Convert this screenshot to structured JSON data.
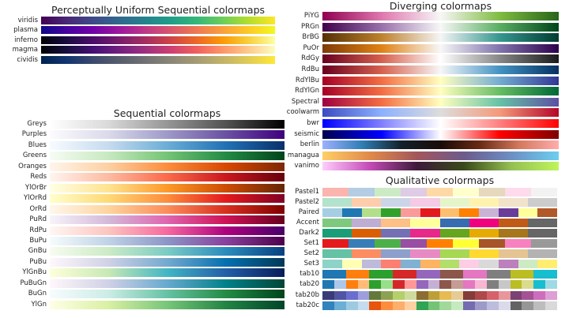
{
  "chart_data": [
    {
      "type": "colormap",
      "title": "Perceptually Uniform Sequential colormaps",
      "colormaps": [
        {
          "name": "viridis",
          "kind": "continuous",
          "colors": [
            "#440154",
            "#482878",
            "#3e4989",
            "#31688e",
            "#26828e",
            "#1f9e89",
            "#35b779",
            "#6ece58",
            "#b5de2b",
            "#fde725"
          ]
        },
        {
          "name": "plasma",
          "kind": "continuous",
          "colors": [
            "#0d0887",
            "#46039f",
            "#7201a8",
            "#9c179e",
            "#bd3786",
            "#d8576b",
            "#ed7953",
            "#fb9f3a",
            "#fdca26",
            "#f0f921"
          ]
        },
        {
          "name": "inferno",
          "kind": "continuous",
          "colors": [
            "#000004",
            "#1b0c41",
            "#4a0c6b",
            "#781c6d",
            "#a52c60",
            "#cf4446",
            "#ed6925",
            "#fb9b06",
            "#f7d13d",
            "#fcffa4"
          ]
        },
        {
          "name": "magma",
          "kind": "continuous",
          "colors": [
            "#000004",
            "#180f3d",
            "#440f76",
            "#721f81",
            "#9e2f7f",
            "#cd4071",
            "#f1605d",
            "#fd9668",
            "#feca8d",
            "#fcfdbf"
          ]
        },
        {
          "name": "cividis",
          "kind": "continuous",
          "colors": [
            "#00224e",
            "#123570",
            "#3b496c",
            "#575d6d",
            "#707173",
            "#8a8678",
            "#a59c74",
            "#c3b369",
            "#e1cc55",
            "#fee838"
          ]
        }
      ]
    },
    {
      "type": "colormap",
      "title": "Sequential colormaps",
      "colormaps": [
        {
          "name": "Greys",
          "kind": "continuous",
          "colors": [
            "#ffffff",
            "#d9d9d9",
            "#969696",
            "#525252",
            "#000000"
          ]
        },
        {
          "name": "Purples",
          "kind": "continuous",
          "colors": [
            "#fcfbfd",
            "#dadaeb",
            "#9e9ac8",
            "#6a51a3",
            "#3f007d"
          ]
        },
        {
          "name": "Blues",
          "kind": "continuous",
          "colors": [
            "#f7fbff",
            "#c6dbef",
            "#6baed6",
            "#2171b5",
            "#08306b"
          ]
        },
        {
          "name": "Greens",
          "kind": "continuous",
          "colors": [
            "#f7fcf5",
            "#c7e9c0",
            "#74c476",
            "#238b45",
            "#00441b"
          ]
        },
        {
          "name": "Oranges",
          "kind": "continuous",
          "colors": [
            "#fff5eb",
            "#fdd0a2",
            "#fd8d3c",
            "#d94801",
            "#7f2704"
          ]
        },
        {
          "name": "Reds",
          "kind": "continuous",
          "colors": [
            "#fff5f0",
            "#fcbba1",
            "#fb6a4a",
            "#cb181d",
            "#67000d"
          ]
        },
        {
          "name": "YlOrBr",
          "kind": "continuous",
          "colors": [
            "#ffffe5",
            "#fee391",
            "#fe9929",
            "#cc4c02",
            "#662506"
          ]
        },
        {
          "name": "YlOrRd",
          "kind": "continuous",
          "colors": [
            "#ffffcc",
            "#fed976",
            "#fd8d3c",
            "#e31a1c",
            "#800026"
          ]
        },
        {
          "name": "OrRd",
          "kind": "continuous",
          "colors": [
            "#fff7ec",
            "#fdd49e",
            "#fc8d59",
            "#d7301f",
            "#7f0000"
          ]
        },
        {
          "name": "PuRd",
          "kind": "continuous",
          "colors": [
            "#f7f4f9",
            "#d4b9da",
            "#df65b0",
            "#ce1256",
            "#67001f"
          ]
        },
        {
          "name": "RdPu",
          "kind": "continuous",
          "colors": [
            "#fff7f3",
            "#fcc5c0",
            "#f768a1",
            "#ae017e",
            "#49006a"
          ]
        },
        {
          "name": "BuPu",
          "kind": "continuous",
          "colors": [
            "#f7fcfd",
            "#bfd3e6",
            "#8c96c6",
            "#88419d",
            "#4d004b"
          ]
        },
        {
          "name": "GnBu",
          "kind": "continuous",
          "colors": [
            "#f7fcf0",
            "#ccebc5",
            "#7bccc4",
            "#2b8cbe",
            "#084081"
          ]
        },
        {
          "name": "PuBu",
          "kind": "continuous",
          "colors": [
            "#fff7fb",
            "#d0d1e6",
            "#74a9cf",
            "#0570b0",
            "#023858"
          ]
        },
        {
          "name": "YlGnBu",
          "kind": "continuous",
          "colors": [
            "#ffffd9",
            "#c7e9b4",
            "#41b6c4",
            "#225ea8",
            "#081d58"
          ]
        },
        {
          "name": "PuBuGn",
          "kind": "continuous",
          "colors": [
            "#fff7fb",
            "#d0d1e6",
            "#67a9cf",
            "#02818a",
            "#014636"
          ]
        },
        {
          "name": "BuGn",
          "kind": "continuous",
          "colors": [
            "#f7fcfd",
            "#ccece6",
            "#66c2a4",
            "#238b45",
            "#00441b"
          ]
        },
        {
          "name": "YlGn",
          "kind": "continuous",
          "colors": [
            "#ffffe5",
            "#d9f0a3",
            "#78c679",
            "#238443",
            "#004529"
          ]
        }
      ]
    },
    {
      "type": "colormap",
      "title": "Diverging colormaps",
      "colormaps": [
        {
          "name": "PiYG",
          "kind": "continuous",
          "colors": [
            "#8e0152",
            "#de77ae",
            "#f7f7f7",
            "#7fbc41",
            "#276419"
          ]
        },
        {
          "name": "PRGn",
          "kind": "continuous",
          "colors": [
            "#40004b",
            "#9970ab",
            "#f7f7f7",
            "#5aae61",
            "#00441b"
          ]
        },
        {
          "name": "BrBG",
          "kind": "continuous",
          "colors": [
            "#543005",
            "#bf812d",
            "#f5f5f5",
            "#35978f",
            "#003c30"
          ]
        },
        {
          "name": "PuOr",
          "kind": "continuous",
          "colors": [
            "#7f3b08",
            "#e08214",
            "#f7f7f7",
            "#8073ac",
            "#2d004b"
          ]
        },
        {
          "name": "RdGy",
          "kind": "continuous",
          "colors": [
            "#67001f",
            "#d6604d",
            "#ffffff",
            "#878787",
            "#1a1a1a"
          ]
        },
        {
          "name": "RdBu",
          "kind": "continuous",
          "colors": [
            "#67001f",
            "#d6604d",
            "#f7f7f7",
            "#4393c3",
            "#053061"
          ]
        },
        {
          "name": "RdYlBu",
          "kind": "continuous",
          "colors": [
            "#a50026",
            "#f46d43",
            "#ffffbf",
            "#74add1",
            "#313695"
          ]
        },
        {
          "name": "RdYlGn",
          "kind": "continuous",
          "colors": [
            "#a50026",
            "#f46d43",
            "#ffffbf",
            "#66bd63",
            "#006837"
          ]
        },
        {
          "name": "Spectral",
          "kind": "continuous",
          "colors": [
            "#9e0142",
            "#f46d43",
            "#ffffbf",
            "#66c2a5",
            "#5e4fa2"
          ]
        },
        {
          "name": "coolwarm",
          "kind": "continuous",
          "colors": [
            "#3b4cc0",
            "#8db0fe",
            "#dddddd",
            "#f49a7b",
            "#b40426"
          ]
        },
        {
          "name": "bwr",
          "kind": "continuous",
          "colors": [
            "#0000ff",
            "#ffffff",
            "#ff0000"
          ]
        },
        {
          "name": "seismic",
          "kind": "continuous",
          "colors": [
            "#00004d",
            "#0000ff",
            "#ffffff",
            "#ff0000",
            "#800000"
          ]
        },
        {
          "name": "berlin",
          "kind": "continuous",
          "colors": [
            "#9eb0ff",
            "#2f7fb5",
            "#11202b",
            "#1a0b07",
            "#6a2a14",
            "#d4785e",
            "#ffadad"
          ]
        },
        {
          "name": "managua",
          "kind": "continuous",
          "colors": [
            "#ffcf67",
            "#e08a4a",
            "#a2565b",
            "#6d5a8c",
            "#6c8fc4",
            "#6ccef0"
          ]
        },
        {
          "name": "vanimo",
          "kind": "continuous",
          "colors": [
            "#ffcdfd",
            "#c54bb7",
            "#3d1a3a",
            "#3a4a1a",
            "#94c054",
            "#bef55a"
          ]
        }
      ]
    },
    {
      "type": "colormap",
      "title": "Qualitative colormaps",
      "colormaps": [
        {
          "name": "Pastel1",
          "kind": "discrete",
          "colors": [
            "#fbb4ae",
            "#b3cde3",
            "#ccebc5",
            "#decbe4",
            "#fed9a6",
            "#ffffcc",
            "#e5d8bd",
            "#fddaec",
            "#f2f2f2"
          ]
        },
        {
          "name": "Pastel2",
          "kind": "discrete",
          "colors": [
            "#b3e2cd",
            "#fdcdac",
            "#cbd5e8",
            "#f4cae4",
            "#e6f5c9",
            "#fff2ae",
            "#f1e2cc",
            "#cccccc"
          ]
        },
        {
          "name": "Paired",
          "kind": "discrete",
          "colors": [
            "#a6cee3",
            "#1f78b4",
            "#b2df8a",
            "#33a02c",
            "#fb9a99",
            "#e31a1c",
            "#fdbf6f",
            "#ff7f00",
            "#cab2d6",
            "#6a3d9a",
            "#ffff99",
            "#b15928"
          ]
        },
        {
          "name": "Accent",
          "kind": "discrete",
          "colors": [
            "#7fc97f",
            "#beaed4",
            "#fdc086",
            "#ffff99",
            "#386cb0",
            "#f0027f",
            "#bf5b17",
            "#666666"
          ]
        },
        {
          "name": "Dark2",
          "kind": "discrete",
          "colors": [
            "#1b9e77",
            "#d95f02",
            "#7570b3",
            "#e7298a",
            "#66a61e",
            "#e6ab02",
            "#a6761d",
            "#666666"
          ]
        },
        {
          "name": "Set1",
          "kind": "discrete",
          "colors": [
            "#e41a1c",
            "#377eb8",
            "#4daf4a",
            "#984ea3",
            "#ff7f00",
            "#ffff33",
            "#a65628",
            "#f781bf",
            "#999999"
          ]
        },
        {
          "name": "Set2",
          "kind": "discrete",
          "colors": [
            "#66c2a5",
            "#fc8d62",
            "#8da0cb",
            "#e78ac3",
            "#a6d854",
            "#ffd92f",
            "#e5c494",
            "#b3b3b3"
          ]
        },
        {
          "name": "Set3",
          "kind": "discrete",
          "colors": [
            "#8dd3c7",
            "#ffffb3",
            "#bebada",
            "#fb8072",
            "#80b1d3",
            "#fdb462",
            "#b3de69",
            "#fccde5",
            "#d9d9d9",
            "#bc80bd",
            "#ccebc5",
            "#ffed6f"
          ]
        },
        {
          "name": "tab10",
          "kind": "discrete",
          "colors": [
            "#1f77b4",
            "#ff7f0e",
            "#2ca02c",
            "#d62728",
            "#9467bd",
            "#8c564b",
            "#e377c2",
            "#7f7f7f",
            "#bcbd22",
            "#17becf"
          ]
        },
        {
          "name": "tab20",
          "kind": "discrete",
          "colors": [
            "#1f77b4",
            "#aec7e8",
            "#ff7f0e",
            "#ffbb78",
            "#2ca02c",
            "#98df8a",
            "#d62728",
            "#ff9896",
            "#9467bd",
            "#c5b0d5",
            "#8c564b",
            "#c49c94",
            "#e377c2",
            "#f7b6d2",
            "#7f7f7f",
            "#c7c7c7",
            "#bcbd22",
            "#dbdb8d",
            "#17becf",
            "#9edae5"
          ]
        },
        {
          "name": "tab20b",
          "kind": "discrete",
          "colors": [
            "#393b79",
            "#5254a3",
            "#6b6ecf",
            "#9c9ede",
            "#637939",
            "#8ca252",
            "#b5cf6b",
            "#cedb9c",
            "#8c6d31",
            "#bd9e39",
            "#e7ba52",
            "#e7cb94",
            "#843c39",
            "#ad494a",
            "#d6616b",
            "#e7969c",
            "#7b4173",
            "#a55194",
            "#ce6dbd",
            "#de9ed6"
          ]
        },
        {
          "name": "tab20c",
          "kind": "discrete",
          "colors": [
            "#3182bd",
            "#6baed6",
            "#9ecae1",
            "#c6dbef",
            "#e6550d",
            "#fd8d3c",
            "#fdae6b",
            "#fdd0a2",
            "#31a354",
            "#74c476",
            "#a1d99b",
            "#c7e9c0",
            "#756bb1",
            "#9e9ac8",
            "#bcbddc",
            "#dadaeb",
            "#636363",
            "#969696",
            "#bdbdbd",
            "#d9d9d9"
          ]
        }
      ]
    }
  ]
}
